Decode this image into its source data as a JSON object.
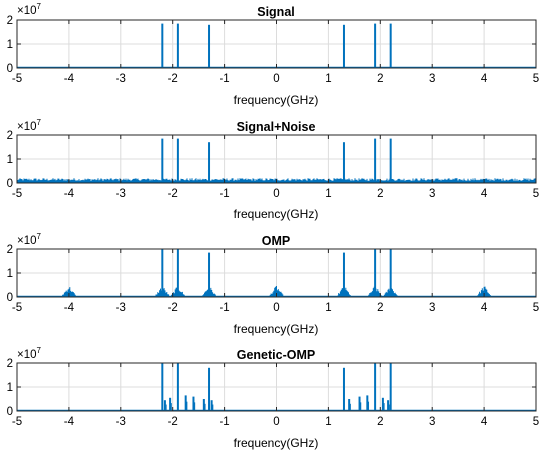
{
  "chart_data": [
    {
      "type": "line",
      "title": "Signal",
      "xlabel": "frequency(GHz)",
      "ylabel": "",
      "y_exponent_label": "×10",
      "y_exponent_power": "7",
      "xlim": [
        -5,
        5
      ],
      "ylim": [
        0,
        2
      ],
      "xticks": [
        "-5",
        "-4",
        "-3",
        "-2",
        "-1",
        "0",
        "1",
        "2",
        "3",
        "4",
        "5"
      ],
      "yticks": [
        "0",
        "1",
        "2"
      ],
      "grid": true,
      "color": "#0072BD",
      "series": [
        {
          "peaks": [
            {
              "x": -2.2,
              "y": 1.85
            },
            {
              "x": -1.9,
              "y": 1.85
            },
            {
              "x": -1.3,
              "y": 1.8
            },
            {
              "x": 1.3,
              "y": 1.8
            },
            {
              "x": 1.9,
              "y": 1.85
            },
            {
              "x": 2.2,
              "y": 1.85
            }
          ],
          "noise_floor": 0.0
        }
      ]
    },
    {
      "type": "line",
      "title": "Signal+Noise",
      "xlabel": "frequency(GHz)",
      "ylabel": "",
      "y_exponent_label": "×10",
      "y_exponent_power": "7",
      "xlim": [
        -5,
        5
      ],
      "ylim": [
        0,
        2
      ],
      "xticks": [
        "-5",
        "-4",
        "-3",
        "-2",
        "-1",
        "0",
        "1",
        "2",
        "3",
        "4",
        "5"
      ],
      "yticks": [
        "0",
        "1",
        "2"
      ],
      "grid": true,
      "color": "#0072BD",
      "series": [
        {
          "peaks": [
            {
              "x": -2.2,
              "y": 1.85
            },
            {
              "x": -1.9,
              "y": 1.85
            },
            {
              "x": -1.3,
              "y": 1.7
            },
            {
              "x": 1.3,
              "y": 1.7
            },
            {
              "x": 1.9,
              "y": 1.85
            },
            {
              "x": 2.2,
              "y": 1.85
            }
          ],
          "noise_floor": 0.2
        }
      ]
    },
    {
      "type": "line",
      "title": "OMP",
      "xlabel": "frequency(GHz)",
      "ylabel": "",
      "y_exponent_label": "×10",
      "y_exponent_power": "7",
      "xlim": [
        -5,
        5
      ],
      "ylim": [
        0,
        2
      ],
      "xticks": [
        "-5",
        "-4",
        "-3",
        "-2",
        "-1",
        "0",
        "1",
        "2",
        "3",
        "4",
        "5"
      ],
      "yticks": [
        "0",
        "1",
        "2"
      ],
      "grid": true,
      "color": "#0072BD",
      "series": [
        {
          "peaks": [
            {
              "x": -2.2,
              "y": 2.0
            },
            {
              "x": -1.9,
              "y": 2.0
            },
            {
              "x": -1.3,
              "y": 1.85
            },
            {
              "x": 1.3,
              "y": 1.85
            },
            {
              "x": 1.9,
              "y": 2.0
            },
            {
              "x": 2.2,
              "y": 2.0
            }
          ],
          "clusters": [
            {
              "x": -4.0,
              "y": 0.5
            },
            {
              "x": -2.2,
              "y": 0.5
            },
            {
              "x": -1.9,
              "y": 0.5
            },
            {
              "x": -1.3,
              "y": 0.5
            },
            {
              "x": 0.0,
              "y": 0.5
            },
            {
              "x": 1.3,
              "y": 0.5
            },
            {
              "x": 1.9,
              "y": 0.5
            },
            {
              "x": 2.2,
              "y": 0.5
            },
            {
              "x": 4.0,
              "y": 0.5
            }
          ],
          "noise_floor": 0.0
        }
      ]
    },
    {
      "type": "line",
      "title": "Genetic-OMP",
      "xlabel": "frequency(GHz)",
      "ylabel": "",
      "y_exponent_label": "×10",
      "y_exponent_power": "7",
      "xlim": [
        -5,
        5
      ],
      "ylim": [
        0,
        2
      ],
      "xticks": [
        "-5",
        "-4",
        "-3",
        "-2",
        "-1",
        "0",
        "1",
        "2",
        "3",
        "4",
        "5"
      ],
      "yticks": [
        "0",
        "1",
        "2"
      ],
      "grid": true,
      "color": "#0072BD",
      "series": [
        {
          "peaks": [
            {
              "x": -2.2,
              "y": 2.0
            },
            {
              "x": -1.9,
              "y": 2.0
            },
            {
              "x": -1.3,
              "y": 1.8
            },
            {
              "x": 1.3,
              "y": 1.8
            },
            {
              "x": 1.9,
              "y": 2.0
            },
            {
              "x": 2.2,
              "y": 2.0
            }
          ],
          "side_spikes": [
            {
              "x": -2.15,
              "y": 0.45
            },
            {
              "x": -2.05,
              "y": 0.55
            },
            {
              "x": -1.75,
              "y": 0.65
            },
            {
              "x": -1.6,
              "y": 0.6
            },
            {
              "x": -1.4,
              "y": 0.5
            },
            {
              "x": -1.25,
              "y": 0.45
            },
            {
              "x": 1.4,
              "y": 0.5
            },
            {
              "x": 1.6,
              "y": 0.6
            },
            {
              "x": 1.75,
              "y": 0.65
            },
            {
              "x": 2.05,
              "y": 0.55
            },
            {
              "x": 2.15,
              "y": 0.45
            }
          ],
          "noise_floor": 0.0
        }
      ]
    }
  ]
}
